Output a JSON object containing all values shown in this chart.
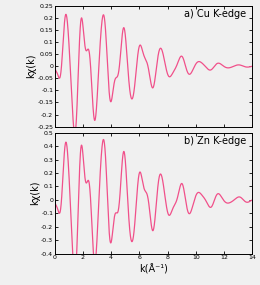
{
  "title_a": "a) Cu K-edge",
  "title_b": "b) Zn K-edge",
  "xlabel": "k(Å⁻¹)",
  "ylabel_a": "kχ(k)",
  "ylabel_b": "kχ(k)",
  "xlim": [
    0,
    14
  ],
  "ylim_a": [
    -0.25,
    0.25
  ],
  "ylim_b": [
    -0.4,
    0.5
  ],
  "yticks_a": [
    -0.25,
    -0.2,
    -0.15,
    -0.1,
    -0.05,
    0,
    0.05,
    0.1,
    0.15,
    0.2,
    0.25
  ],
  "yticks_b": [
    -0.4,
    -0.3,
    -0.2,
    -0.1,
    0,
    0.1,
    0.2,
    0.3,
    0.4,
    0.5
  ],
  "xticks": [
    0,
    2,
    4,
    6,
    8,
    10,
    12,
    14
  ],
  "line_color": "#F0508A",
  "bg_color": "#f0f0f0"
}
